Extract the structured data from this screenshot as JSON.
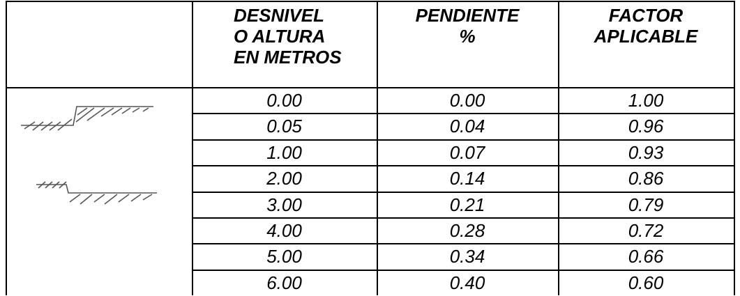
{
  "header": [
    [
      "DESNIVEL",
      "O ALTURA",
      "EN METROS"
    ],
    [
      "PENDIENTE",
      "%"
    ],
    [
      "FACTOR",
      "APLICABLE"
    ]
  ],
  "rows": [
    [
      "0.00",
      "0.00",
      "1.00"
    ],
    [
      "0.05",
      "0.04",
      "0.96"
    ],
    [
      "1.00",
      "0.07",
      "0.93"
    ],
    [
      "2.00",
      "0.14",
      "0.86"
    ],
    [
      "3.00",
      "0.21",
      "0.79"
    ],
    [
      "4.00",
      "0.28",
      "0.72"
    ],
    [
      "5.00",
      "0.34",
      "0.66"
    ],
    [
      "6.00",
      "0.40",
      "0.60"
    ]
  ]
}
